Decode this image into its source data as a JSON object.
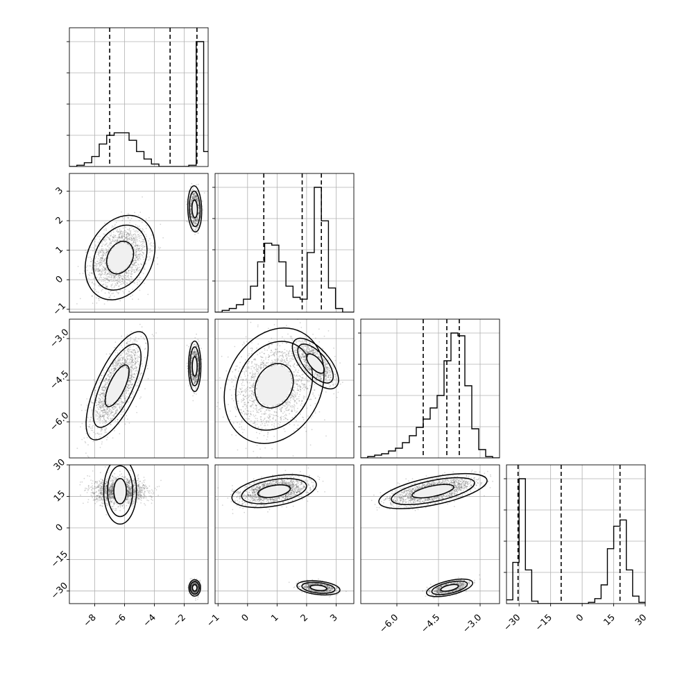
{
  "chart_data": {
    "type": "corner",
    "title": "",
    "n_params": 4,
    "params": [
      {
        "range": [
          -9.7,
          -0.4
        ],
        "ticks": [
          -8,
          -6,
          -4,
          -2
        ],
        "tick_labels": [
          "−8",
          "−6",
          "−4",
          "−2"
        ],
        "quantiles": [
          -7.0,
          -2.95,
          -1.15
        ],
        "hist_bins": [
          -9.7,
          -9.2,
          -8.7,
          -8.2,
          -7.7,
          -7.2,
          -6.7,
          -6.2,
          -5.7,
          -5.2,
          -4.7,
          -4.2,
          -3.7,
          -3.2,
          -2.7,
          -2.2,
          -1.7,
          -1.2,
          -0.7,
          -0.4
        ],
        "hist_counts": [
          0,
          1,
          3,
          8,
          18,
          25,
          27,
          27,
          21,
          12,
          6,
          2,
          0,
          0,
          0,
          0,
          1,
          100,
          12
        ],
        "modes": [
          {
            "mean": -6.4,
            "sd": 0.9,
            "weight": 0.5
          },
          {
            "mean": -1.25,
            "sd": 0.18,
            "weight": 0.5
          }
        ]
      },
      {
        "range": [
          -1.1,
          3.6
        ],
        "ticks": [
          -1,
          0,
          1,
          2,
          3
        ],
        "tick_labels": [
          "−1",
          "0",
          "1",
          "2",
          "3"
        ],
        "quantiles": [
          0.55,
          1.85,
          2.5
        ],
        "hist_bins": [
          -1.1,
          -0.86,
          -0.62,
          -0.38,
          -0.14,
          0.1,
          0.34,
          0.58,
          0.82,
          1.06,
          1.3,
          1.54,
          1.78,
          2.02,
          2.26,
          2.5,
          2.74,
          2.98,
          3.22,
          3.46,
          3.6
        ],
        "hist_counts": [
          0,
          1,
          2,
          4,
          7,
          14,
          27,
          37,
          36,
          27,
          14,
          8,
          7,
          32,
          67,
          49,
          13,
          2,
          0,
          0
        ],
        "modes": [
          {
            "mean": 0.75,
            "sd": 0.7,
            "weight": 0.5
          },
          {
            "mean": 2.4,
            "sd": 0.3,
            "weight": 0.5
          }
        ]
      },
      {
        "range": [
          -7.3,
          -2.3
        ],
        "ticks": [
          -6.0,
          -4.5,
          -3.0
        ],
        "tick_labels": [
          "−6.0",
          "−4.5",
          "−3.0"
        ],
        "quantiles": [
          -5.05,
          -4.2,
          -3.75
        ],
        "hist_bins": [
          -7.3,
          -7.05,
          -6.8,
          -6.55,
          -6.3,
          -6.05,
          -5.8,
          -5.55,
          -5.3,
          -5.05,
          -4.8,
          -4.55,
          -4.3,
          -4.05,
          -3.8,
          -3.55,
          -3.3,
          -3.05,
          -2.8,
          -2.55,
          -2.3
        ],
        "hist_counts": [
          0,
          1,
          2,
          3,
          5,
          7,
          11,
          16,
          22,
          28,
          36,
          45,
          70,
          90,
          88,
          52,
          21,
          6,
          1,
          0
        ],
        "modes": [
          {
            "mean": -4.6,
            "sd": 0.85,
            "weight": 0.5
          },
          {
            "mean": -3.9,
            "sd": 0.35,
            "weight": 0.5
          }
        ]
      },
      {
        "range": [
          -36,
          30
        ],
        "ticks": [
          -30,
          -15,
          0,
          15,
          30
        ],
        "tick_labels": [
          "−30",
          "−15",
          "0",
          "15",
          "30"
        ],
        "quantiles": [
          -30.5,
          -10.0,
          18.0
        ],
        "hist_bins": [
          -36,
          -33,
          -30,
          -27,
          -24,
          -21,
          -18,
          -15,
          -12,
          -9,
          -6,
          -3,
          0,
          3,
          6,
          9,
          12,
          15,
          18,
          21,
          24,
          27,
          30
        ],
        "hist_counts": [
          3,
          33,
          100,
          27,
          2,
          0,
          0,
          0,
          0,
          0,
          0,
          0,
          0,
          1,
          4,
          15,
          44,
          62,
          67,
          27,
          6,
          1
        ],
        "modes": [
          {
            "mean": 17,
            "sd": 3.5,
            "weight": 0.5
          },
          {
            "mean": -28.5,
            "sd": 1.5,
            "weight": 0.5
          }
        ]
      }
    ],
    "pairs": [
      {
        "row": 1,
        "col": 0,
        "modes": [
          {
            "mx": -6.3,
            "my": 0.75,
            "sx": 0.9,
            "sy": 0.55,
            "rho": 0.25,
            "n": 1800
          },
          {
            "mx": -1.3,
            "my": 2.4,
            "sx": 0.18,
            "sy": 0.3,
            "rho": -0.1,
            "n": 900
          }
        ]
      },
      {
        "row": 2,
        "col": 0,
        "modes": [
          {
            "mx": -6.5,
            "my": -4.7,
            "sx": 0.8,
            "sy": 0.75,
            "rho": 0.7,
            "n": 1800
          },
          {
            "mx": -1.3,
            "my": -4.0,
            "sx": 0.16,
            "sy": 0.35,
            "rho": 0.0,
            "n": 900
          }
        ]
      },
      {
        "row": 2,
        "col": 1,
        "modes": [
          {
            "mx": 0.9,
            "my": -4.7,
            "sx": 0.65,
            "sy": 0.8,
            "rho": 0.2,
            "n": 1800
          },
          {
            "mx": 2.3,
            "my": -3.9,
            "sx": 0.3,
            "sy": 0.35,
            "rho": -0.65,
            "n": 900
          }
        ]
      },
      {
        "row": 3,
        "col": 0,
        "modes": [
          {
            "mx": -6.3,
            "my": 17.5,
            "sx": 0.85,
            "sy": 3.0,
            "rho": 0.0,
            "n": 1800
          },
          {
            "mx": -1.3,
            "my": -28.5,
            "sx": 0.15,
            "sy": 1.5,
            "rho": 0.0,
            "n": 900
          }
        ]
      },
      {
        "row": 3,
        "col": 1,
        "modes": [
          {
            "mx": 0.9,
            "my": 17.5,
            "sx": 0.55,
            "sy": 3.0,
            "rho": 0.4,
            "n": 1800
          },
          {
            "mx": 2.4,
            "my": -28.5,
            "sx": 0.28,
            "sy": 1.3,
            "rho": -0.3,
            "n": 900
          }
        ]
      },
      {
        "row": 3,
        "col": 2,
        "modes": [
          {
            "mx": -4.7,
            "my": 17.5,
            "sx": 0.75,
            "sy": 3.2,
            "rho": 0.6,
            "n": 1800
          },
          {
            "mx": -4.1,
            "my": -28.5,
            "sx": 0.32,
            "sy": 1.6,
            "rho": 0.55,
            "n": 900
          }
        ]
      }
    ],
    "contour_levels": [
      0.39,
      0.86
    ],
    "grid": true,
    "legend": null
  }
}
